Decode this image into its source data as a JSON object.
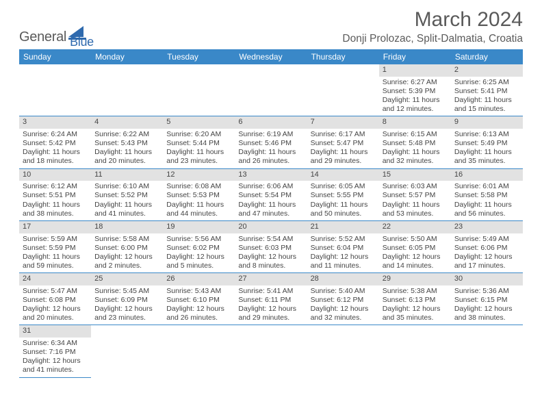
{
  "logo": {
    "part1": "General",
    "part2": "Blue"
  },
  "title": "March 2024",
  "location": "Donji Prolozac, Split-Dalmatia, Croatia",
  "colors": {
    "header_bg": "#3a88c8",
    "header_fg": "#ffffff",
    "daynum_bg": "#e2e2e2",
    "border": "#3a88c8",
    "text": "#444444",
    "logo_gray": "#5a5a5a",
    "logo_blue": "#2f6aae"
  },
  "day_headers": [
    "Sunday",
    "Monday",
    "Tuesday",
    "Wednesday",
    "Thursday",
    "Friday",
    "Saturday"
  ],
  "weeks": [
    [
      {
        "n": "",
        "sr": "",
        "ss": "",
        "dl": ""
      },
      {
        "n": "",
        "sr": "",
        "ss": "",
        "dl": ""
      },
      {
        "n": "",
        "sr": "",
        "ss": "",
        "dl": ""
      },
      {
        "n": "",
        "sr": "",
        "ss": "",
        "dl": ""
      },
      {
        "n": "",
        "sr": "",
        "ss": "",
        "dl": ""
      },
      {
        "n": "1",
        "sr": "Sunrise: 6:27 AM",
        "ss": "Sunset: 5:39 PM",
        "dl": "Daylight: 11 hours and 12 minutes."
      },
      {
        "n": "2",
        "sr": "Sunrise: 6:25 AM",
        "ss": "Sunset: 5:41 PM",
        "dl": "Daylight: 11 hours and 15 minutes."
      }
    ],
    [
      {
        "n": "3",
        "sr": "Sunrise: 6:24 AM",
        "ss": "Sunset: 5:42 PM",
        "dl": "Daylight: 11 hours and 18 minutes."
      },
      {
        "n": "4",
        "sr": "Sunrise: 6:22 AM",
        "ss": "Sunset: 5:43 PM",
        "dl": "Daylight: 11 hours and 20 minutes."
      },
      {
        "n": "5",
        "sr": "Sunrise: 6:20 AM",
        "ss": "Sunset: 5:44 PM",
        "dl": "Daylight: 11 hours and 23 minutes."
      },
      {
        "n": "6",
        "sr": "Sunrise: 6:19 AM",
        "ss": "Sunset: 5:46 PM",
        "dl": "Daylight: 11 hours and 26 minutes."
      },
      {
        "n": "7",
        "sr": "Sunrise: 6:17 AM",
        "ss": "Sunset: 5:47 PM",
        "dl": "Daylight: 11 hours and 29 minutes."
      },
      {
        "n": "8",
        "sr": "Sunrise: 6:15 AM",
        "ss": "Sunset: 5:48 PM",
        "dl": "Daylight: 11 hours and 32 minutes."
      },
      {
        "n": "9",
        "sr": "Sunrise: 6:13 AM",
        "ss": "Sunset: 5:49 PM",
        "dl": "Daylight: 11 hours and 35 minutes."
      }
    ],
    [
      {
        "n": "10",
        "sr": "Sunrise: 6:12 AM",
        "ss": "Sunset: 5:51 PM",
        "dl": "Daylight: 11 hours and 38 minutes."
      },
      {
        "n": "11",
        "sr": "Sunrise: 6:10 AM",
        "ss": "Sunset: 5:52 PM",
        "dl": "Daylight: 11 hours and 41 minutes."
      },
      {
        "n": "12",
        "sr": "Sunrise: 6:08 AM",
        "ss": "Sunset: 5:53 PM",
        "dl": "Daylight: 11 hours and 44 minutes."
      },
      {
        "n": "13",
        "sr": "Sunrise: 6:06 AM",
        "ss": "Sunset: 5:54 PM",
        "dl": "Daylight: 11 hours and 47 minutes."
      },
      {
        "n": "14",
        "sr": "Sunrise: 6:05 AM",
        "ss": "Sunset: 5:55 PM",
        "dl": "Daylight: 11 hours and 50 minutes."
      },
      {
        "n": "15",
        "sr": "Sunrise: 6:03 AM",
        "ss": "Sunset: 5:57 PM",
        "dl": "Daylight: 11 hours and 53 minutes."
      },
      {
        "n": "16",
        "sr": "Sunrise: 6:01 AM",
        "ss": "Sunset: 5:58 PM",
        "dl": "Daylight: 11 hours and 56 minutes."
      }
    ],
    [
      {
        "n": "17",
        "sr": "Sunrise: 5:59 AM",
        "ss": "Sunset: 5:59 PM",
        "dl": "Daylight: 11 hours and 59 minutes."
      },
      {
        "n": "18",
        "sr": "Sunrise: 5:58 AM",
        "ss": "Sunset: 6:00 PM",
        "dl": "Daylight: 12 hours and 2 minutes."
      },
      {
        "n": "19",
        "sr": "Sunrise: 5:56 AM",
        "ss": "Sunset: 6:02 PM",
        "dl": "Daylight: 12 hours and 5 minutes."
      },
      {
        "n": "20",
        "sr": "Sunrise: 5:54 AM",
        "ss": "Sunset: 6:03 PM",
        "dl": "Daylight: 12 hours and 8 minutes."
      },
      {
        "n": "21",
        "sr": "Sunrise: 5:52 AM",
        "ss": "Sunset: 6:04 PM",
        "dl": "Daylight: 12 hours and 11 minutes."
      },
      {
        "n": "22",
        "sr": "Sunrise: 5:50 AM",
        "ss": "Sunset: 6:05 PM",
        "dl": "Daylight: 12 hours and 14 minutes."
      },
      {
        "n": "23",
        "sr": "Sunrise: 5:49 AM",
        "ss": "Sunset: 6:06 PM",
        "dl": "Daylight: 12 hours and 17 minutes."
      }
    ],
    [
      {
        "n": "24",
        "sr": "Sunrise: 5:47 AM",
        "ss": "Sunset: 6:08 PM",
        "dl": "Daylight: 12 hours and 20 minutes."
      },
      {
        "n": "25",
        "sr": "Sunrise: 5:45 AM",
        "ss": "Sunset: 6:09 PM",
        "dl": "Daylight: 12 hours and 23 minutes."
      },
      {
        "n": "26",
        "sr": "Sunrise: 5:43 AM",
        "ss": "Sunset: 6:10 PM",
        "dl": "Daylight: 12 hours and 26 minutes."
      },
      {
        "n": "27",
        "sr": "Sunrise: 5:41 AM",
        "ss": "Sunset: 6:11 PM",
        "dl": "Daylight: 12 hours and 29 minutes."
      },
      {
        "n": "28",
        "sr": "Sunrise: 5:40 AM",
        "ss": "Sunset: 6:12 PM",
        "dl": "Daylight: 12 hours and 32 minutes."
      },
      {
        "n": "29",
        "sr": "Sunrise: 5:38 AM",
        "ss": "Sunset: 6:13 PM",
        "dl": "Daylight: 12 hours and 35 minutes."
      },
      {
        "n": "30",
        "sr": "Sunrise: 5:36 AM",
        "ss": "Sunset: 6:15 PM",
        "dl": "Daylight: 12 hours and 38 minutes."
      }
    ],
    [
      {
        "n": "31",
        "sr": "Sunrise: 6:34 AM",
        "ss": "Sunset: 7:16 PM",
        "dl": "Daylight: 12 hours and 41 minutes."
      },
      {
        "n": "",
        "sr": "",
        "ss": "",
        "dl": ""
      },
      {
        "n": "",
        "sr": "",
        "ss": "",
        "dl": ""
      },
      {
        "n": "",
        "sr": "",
        "ss": "",
        "dl": ""
      },
      {
        "n": "",
        "sr": "",
        "ss": "",
        "dl": ""
      },
      {
        "n": "",
        "sr": "",
        "ss": "",
        "dl": ""
      },
      {
        "n": "",
        "sr": "",
        "ss": "",
        "dl": ""
      }
    ]
  ]
}
